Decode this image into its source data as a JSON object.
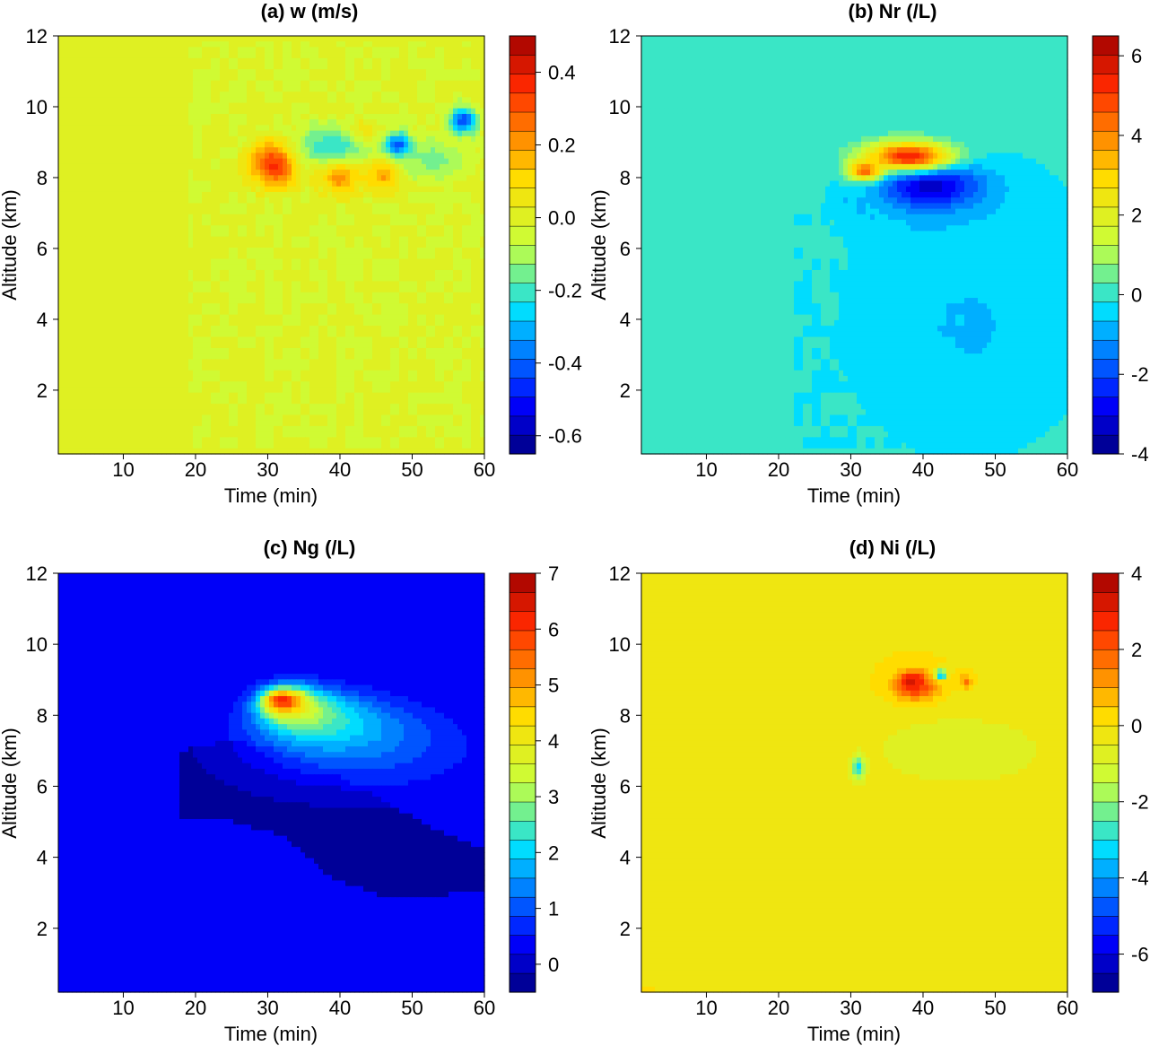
{
  "chart_data": [
    {
      "type": "heatmap",
      "title": "(a) w (m/s)",
      "xlabel": "Time (min)",
      "ylabel": "Altitude (km)",
      "xlim": [
        1,
        60
      ],
      "ylim": [
        0.2,
        12
      ],
      "xticks": [
        "10",
        "20",
        "30",
        "40",
        "50",
        "60"
      ],
      "yticks": [
        "2",
        "4",
        "6",
        "8",
        "10",
        "12"
      ],
      "colorbar": {
        "min": -0.65,
        "max": 0.5,
        "ticks": [
          "0.4",
          "0.2",
          "0.0",
          "-0.2",
          "-0.4",
          "-0.6"
        ],
        "tick_values": [
          0.4,
          0.2,
          0.0,
          -0.2,
          -0.4,
          -0.6
        ]
      },
      "background_value": 0.0,
      "features": [
        {
          "kind": "speckle",
          "x_range": [
            19,
            60
          ],
          "y_range": [
            0.3,
            11.8
          ],
          "value": -0.05
        },
        {
          "kind": "blob",
          "x": 31,
          "y": 8.4,
          "rx": 3.5,
          "ry": 0.7,
          "value": 0.38
        },
        {
          "kind": "blob",
          "x": 40,
          "y": 8.1,
          "rx": 3.0,
          "ry": 0.6,
          "value": 0.25
        },
        {
          "kind": "blob",
          "x": 46,
          "y": 8.1,
          "rx": 2.5,
          "ry": 0.5,
          "value": 0.22
        },
        {
          "kind": "blob",
          "x": 43,
          "y": 9.2,
          "rx": 2.5,
          "ry": 0.4,
          "value": 0.2
        },
        {
          "kind": "blob",
          "x": 48,
          "y": 8.9,
          "rx": 2.0,
          "ry": 0.35,
          "value": -0.52
        },
        {
          "kind": "blob",
          "x": 57,
          "y": 9.6,
          "rx": 2.0,
          "ry": 0.4,
          "value": -0.45
        },
        {
          "kind": "blob",
          "x": 39,
          "y": 8.9,
          "rx": 6.0,
          "ry": 0.6,
          "value": -0.22
        },
        {
          "kind": "blob",
          "x": 53,
          "y": 8.5,
          "rx": 5.0,
          "ry": 0.6,
          "value": -0.15
        }
      ]
    },
    {
      "type": "heatmap",
      "title": "(b) Nr (/L)",
      "xlabel": "Time (min)",
      "ylabel": "Altitude (km)",
      "xlim": [
        1,
        60
      ],
      "ylim": [
        0.2,
        12
      ],
      "xticks": [
        "10",
        "20",
        "30",
        "40",
        "50",
        "60"
      ],
      "yticks": [
        "2",
        "4",
        "6",
        "8",
        "10",
        "12"
      ],
      "colorbar": {
        "min": -4,
        "max": 6.5,
        "ticks": [
          "6",
          "4",
          "2",
          "0",
          "-2",
          "-4"
        ],
        "tick_values": [
          6,
          4,
          2,
          0,
          -2,
          -4
        ]
      },
      "background_value": 0.0,
      "features": [
        {
          "kind": "blob",
          "x": 46,
          "y": 3.8,
          "rx": 17,
          "ry": 3.6,
          "value": -0.7
        },
        {
          "kind": "blob",
          "x": 43,
          "y": 7.4,
          "rx": 14,
          "ry": 1.3,
          "value": -0.7
        },
        {
          "kind": "speckle",
          "x_range": [
            22,
            46
          ],
          "y_range": [
            0.3,
            7.5
          ],
          "value": -0.6
        },
        {
          "kind": "blob",
          "x": 41,
          "y": 7.8,
          "rx": 7,
          "ry": 0.7,
          "value": -3.4
        },
        {
          "kind": "blob",
          "x": 38,
          "y": 8.6,
          "rx": 6.5,
          "ry": 0.45,
          "value": 5.5
        },
        {
          "kind": "blob",
          "x": 32,
          "y": 8.2,
          "rx": 2.5,
          "ry": 0.3,
          "value": 4.5
        }
      ]
    },
    {
      "type": "heatmap",
      "title": "(c) Ng (/L)",
      "xlabel": "Time (min)",
      "ylabel": "Altitude (km)",
      "xlim": [
        1,
        60
      ],
      "ylim": [
        0.2,
        12
      ],
      "xticks": [
        "10",
        "20",
        "30",
        "40",
        "50",
        "60"
      ],
      "yticks": [
        "2",
        "4",
        "6",
        "8",
        "10",
        "12"
      ],
      "colorbar": {
        "min": -0.5,
        "max": 7,
        "ticks": [
          "7",
          "6",
          "5",
          "4",
          "3",
          "2",
          "1",
          "0"
        ],
        "tick_values": [
          7,
          6,
          5,
          4,
          3,
          2,
          1,
          0
        ]
      },
      "background_value": 0.2,
      "features": [
        {
          "kind": "band",
          "x_start": 18,
          "x_end": 60,
          "top": [
            7.0,
            7.3,
            7.0,
            6.4,
            5.6,
            4.8,
            4.2
          ],
          "bottom": [
            5.0,
            5.0,
            4.6,
            3.4,
            2.9,
            2.9,
            3.1
          ],
          "value": -0.3
        },
        {
          "kind": "blob",
          "x": 43,
          "y": 7.0,
          "rx": 17,
          "ry": 1.2,
          "value": 0.9
        },
        {
          "kind": "blob",
          "x": 40,
          "y": 7.6,
          "rx": 11,
          "ry": 0.9,
          "value": 1.8
        },
        {
          "kind": "blob",
          "x": 36,
          "y": 8.0,
          "rx": 7,
          "ry": 0.7,
          "value": 2.8
        },
        {
          "kind": "blob",
          "x": 33,
          "y": 8.3,
          "rx": 4.2,
          "ry": 0.55,
          "value": 4.2
        },
        {
          "kind": "blob",
          "x": 32,
          "y": 8.4,
          "rx": 2.5,
          "ry": 0.3,
          "value": 6.2
        }
      ]
    },
    {
      "type": "heatmap",
      "title": "(d) Ni (/L)",
      "xlabel": "Time (min)",
      "ylabel": "Altitude (km)",
      "xlim": [
        1,
        60
      ],
      "ylim": [
        0.2,
        12
      ],
      "xticks": [
        "10",
        "20",
        "30",
        "40",
        "50",
        "60"
      ],
      "yticks": [
        "2",
        "4",
        "6",
        "8",
        "10",
        "12"
      ],
      "colorbar": {
        "min": -7,
        "max": 4,
        "ticks": [
          "4",
          "2",
          "0",
          "-2",
          "-4",
          "-6"
        ],
        "tick_values": [
          4,
          2,
          0,
          -2,
          -4,
          -6
        ]
      },
      "background_value": 0.0,
      "features": [
        {
          "kind": "blob",
          "x": 45,
          "y": 7.0,
          "rx": 17,
          "ry": 1.4,
          "value": -0.8
        },
        {
          "kind": "blob",
          "x": 31,
          "y": 6.5,
          "rx": 1.0,
          "ry": 0.35,
          "value": -3.2
        },
        {
          "kind": "blob",
          "x": 39,
          "y": 8.8,
          "rx": 3.5,
          "ry": 0.45,
          "value": 2.2
        },
        {
          "kind": "blob",
          "x": 38.5,
          "y": 8.95,
          "rx": 1.8,
          "ry": 0.3,
          "value": 3.2
        },
        {
          "kind": "blob",
          "x": 42.5,
          "y": 9.15,
          "rx": 0.8,
          "ry": 0.15,
          "value": -4.5
        },
        {
          "kind": "blob",
          "x": 46,
          "y": 8.95,
          "rx": 0.9,
          "ry": 0.2,
          "value": 1.6
        }
      ]
    }
  ]
}
